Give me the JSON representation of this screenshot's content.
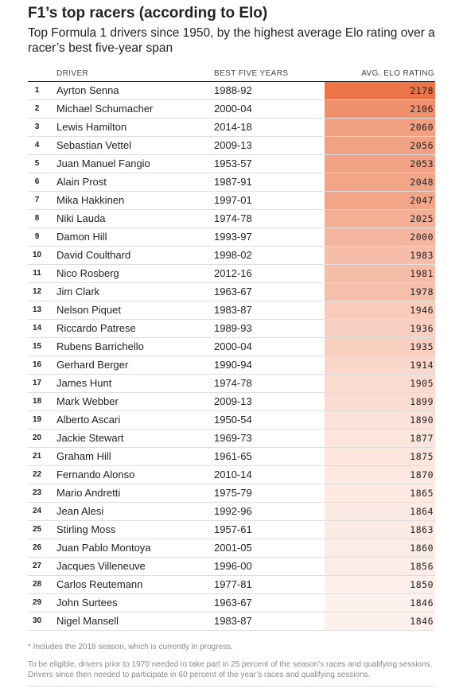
{
  "title": "F1’s top racers (according to Elo)",
  "subtitle": "Top Formula 1 drivers since 1950, by the highest average Elo rating over a racer’s best five-year span",
  "columns": {
    "driver": "DRIVER",
    "years": "BEST FIVE YEARS",
    "elo": "AVG. ELO RATING"
  },
  "colors": {
    "scale_high": "#ec7447",
    "scale_low": "#ffffff"
  },
  "chart_data": {
    "type": "table",
    "color_scale": {
      "min": 1846,
      "max": 2178
    },
    "rows": [
      {
        "rank": "1",
        "driver": "Ayrton Senna",
        "years": "1988-92",
        "elo": 2178
      },
      {
        "rank": "2",
        "driver": "Michael Schumacher",
        "years": "2000-04",
        "elo": 2106
      },
      {
        "rank": "3",
        "driver": "Lewis Hamilton",
        "years": "2014-18",
        "elo": 2060
      },
      {
        "rank": "4",
        "driver": "Sebastian Vettel",
        "years": "2009-13",
        "elo": 2056
      },
      {
        "rank": "5",
        "driver": "Juan Manuel Fangio",
        "years": "1953-57",
        "elo": 2053
      },
      {
        "rank": "6",
        "driver": "Alain Prost",
        "years": "1987-91",
        "elo": 2048
      },
      {
        "rank": "7",
        "driver": "Mika Hakkinen",
        "years": "1997-01",
        "elo": 2047
      },
      {
        "rank": "8",
        "driver": "Niki Lauda",
        "years": "1974-78",
        "elo": 2025
      },
      {
        "rank": "9",
        "driver": "Damon Hill",
        "years": "1993-97",
        "elo": 2000
      },
      {
        "rank": "10",
        "driver": "David Coulthard",
        "years": "1998-02",
        "elo": 1983
      },
      {
        "rank": "11",
        "driver": "Nico Rosberg",
        "years": "2012-16",
        "elo": 1981
      },
      {
        "rank": "12",
        "driver": "Jim Clark",
        "years": "1963-67",
        "elo": 1978
      },
      {
        "rank": "13",
        "driver": "Nelson Piquet",
        "years": "1983-87",
        "elo": 1946
      },
      {
        "rank": "14",
        "driver": "Riccardo Patrese",
        "years": "1989-93",
        "elo": 1936
      },
      {
        "rank": "15",
        "driver": "Rubens Barrichello",
        "years": "2000-04",
        "elo": 1935
      },
      {
        "rank": "16",
        "driver": "Gerhard Berger",
        "years": "1990-94",
        "elo": 1914
      },
      {
        "rank": "17",
        "driver": "James Hunt",
        "years": "1974-78",
        "elo": 1905
      },
      {
        "rank": "18",
        "driver": "Mark Webber",
        "years": "2009-13",
        "elo": 1899
      },
      {
        "rank": "19",
        "driver": "Alberto Ascari",
        "years": "1950-54",
        "elo": 1890
      },
      {
        "rank": "20",
        "driver": "Jackie Stewart",
        "years": "1969-73",
        "elo": 1877
      },
      {
        "rank": "21",
        "driver": "Graham Hill",
        "years": "1961-65",
        "elo": 1875
      },
      {
        "rank": "22",
        "driver": "Fernando Alonso",
        "years": "2010-14",
        "elo": 1870
      },
      {
        "rank": "23",
        "driver": "Mario Andretti",
        "years": "1975-79",
        "elo": 1865
      },
      {
        "rank": "24",
        "driver": "Jean Alesi",
        "years": "1992-96",
        "elo": 1864
      },
      {
        "rank": "25",
        "driver": "Stirling Moss",
        "years": "1957-61",
        "elo": 1863
      },
      {
        "rank": "26",
        "driver": "Juan Pablo Montoya",
        "years": "2001-05",
        "elo": 1860
      },
      {
        "rank": "27",
        "driver": "Jacques Villeneuve",
        "years": "1996-00",
        "elo": 1856
      },
      {
        "rank": "28",
        "driver": "Carlos Reutemann",
        "years": "1977-81",
        "elo": 1850
      },
      {
        "rank": "29",
        "driver": "John Surtees",
        "years": "1963-67",
        "elo": 1846
      },
      {
        "rank": "30",
        "driver": "Nigel Mansell",
        "years": "1983-87",
        "elo": 1846
      }
    ]
  },
  "notes": [
    "* Includes the 2018 season, which is currently in progress.",
    "To be eligible, drivers prior to 1970 needed to take part in 25 percent of the season’s races and qualifying sessions. Drivers since then needed to participate in 60 percent of the year’s races and qualifying sessions."
  ]
}
